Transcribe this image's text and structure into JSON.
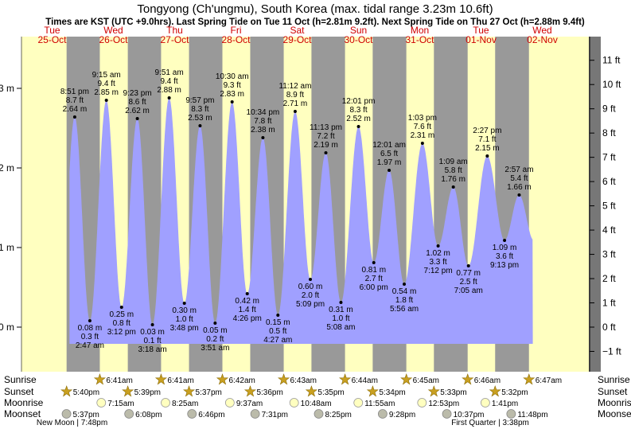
{
  "header": {
    "title": "Tongyong (Ch'ungmu), South Korea (max. tidal range 3.23m 10.6ft)",
    "subtitle": "Times are KST (UTC +9.0hrs). Last Spring Tide on Tue 11 Oct (h=2.81m 9.2ft). Next Spring Tide on Thu 27 Oct (h=2.88m 9.4ft)"
  },
  "days": [
    {
      "name": "Tue",
      "date": "25-Oct"
    },
    {
      "name": "Wed",
      "date": "26-Oct"
    },
    {
      "name": "Thu",
      "date": "27-Oct"
    },
    {
      "name": "Fri",
      "date": "28-Oct"
    },
    {
      "name": "Sat",
      "date": "29-Oct"
    },
    {
      "name": "Sun",
      "date": "30-Oct"
    },
    {
      "name": "Mon",
      "date": "31-Oct"
    },
    {
      "name": "Tue",
      "date": "01-Nov"
    },
    {
      "name": "Wed",
      "date": "02-Nov"
    }
  ],
  "chart_data": {
    "type": "area",
    "x_unit": "hours from 25-Oct 00:00 KST",
    "y_unit": "m",
    "ylim_m": [
      -0.56,
      3.82
    ],
    "left_ticks": [
      "0 m",
      "1 m",
      "2 m",
      "3 m"
    ],
    "right_ticks": [
      "−1 ft",
      "0 ft",
      "1 ft",
      "2 ft",
      "3 ft",
      "4 ft",
      "5 ft",
      "6 ft",
      "7 ft",
      "8 ft",
      "9 ft",
      "10 ft",
      "11 ft"
    ],
    "colors": {
      "water": "#a0a0ff",
      "day": "#ffffc0",
      "night": "#999999",
      "night_edge": "#777777"
    },
    "extremes": [
      {
        "t": 20.85,
        "m": 2.64,
        "time": "8:51 pm",
        "ft": "8.7 ft",
        "mv": "2.64 m"
      },
      {
        "t": 26.78,
        "m": 0.08,
        "time": "2:47 am",
        "ft": "0.3 ft",
        "mv": "0.08 m"
      },
      {
        "t": 33.25,
        "m": 2.85,
        "time": "9:15 am",
        "ft": "9.4 ft",
        "mv": "2.85 m"
      },
      {
        "t": 39.2,
        "m": 0.25,
        "time": "3:12 pm",
        "ft": "0.8 ft",
        "mv": "0.25 m"
      },
      {
        "t": 45.38,
        "m": 2.62,
        "time": "9:23 pm",
        "ft": "8.6 ft",
        "mv": "2.62 m"
      },
      {
        "t": 51.3,
        "m": 0.03,
        "time": "3:18 am",
        "ft": "0.1 ft",
        "mv": "0.03 m"
      },
      {
        "t": 57.85,
        "m": 2.88,
        "time": "9:51 am",
        "ft": "9.4 ft",
        "mv": "2.88 m"
      },
      {
        "t": 63.8,
        "m": 0.3,
        "time": "3:48 pm",
        "ft": "1.0 ft",
        "mv": "0.30 m"
      },
      {
        "t": 69.95,
        "m": 2.53,
        "time": "9:57 pm",
        "ft": "8.3 ft",
        "mv": "2.53 m"
      },
      {
        "t": 75.85,
        "m": 0.05,
        "time": "3:51 am",
        "ft": "0.2 ft",
        "mv": "0.05 m"
      },
      {
        "t": 82.5,
        "m": 2.83,
        "time": "10:30 am",
        "ft": "9.3 ft",
        "mv": "2.83 m"
      },
      {
        "t": 88.43,
        "m": 0.42,
        "time": "4:26 pm",
        "ft": "1.4 ft",
        "mv": "0.42 m"
      },
      {
        "t": 94.57,
        "m": 2.38,
        "time": "10:34 pm",
        "ft": "7.8 ft",
        "mv": "2.38 m"
      },
      {
        "t": 100.45,
        "m": 0.15,
        "time": "4:27 am",
        "ft": "0.5 ft",
        "mv": "0.15 m"
      },
      {
        "t": 107.2,
        "m": 2.71,
        "time": "11:12 am",
        "ft": "8.9 ft",
        "mv": "2.71 m"
      },
      {
        "t": 113.15,
        "m": 0.6,
        "time": "5:09 pm",
        "ft": "2.0 ft",
        "mv": "0.60 m"
      },
      {
        "t": 119.22,
        "m": 2.19,
        "time": "11:13 pm",
        "ft": "7.2 ft",
        "mv": "2.19 m"
      },
      {
        "t": 125.13,
        "m": 0.31,
        "time": "5:08 am",
        "ft": "1.0 ft",
        "mv": "0.31 m"
      },
      {
        "t": 132.02,
        "m": 2.52,
        "time": "12:01 pm",
        "ft": "8.3 ft",
        "mv": "2.52 m"
      },
      {
        "t": 138.0,
        "m": 0.81,
        "time": "6:00 pm",
        "ft": "2.7 ft",
        "mv": "0.81 m"
      },
      {
        "t": 144.02,
        "m": 1.97,
        "time": "12:01 am",
        "ft": "6.5 ft",
        "mv": "1.97 m"
      },
      {
        "t": 149.93,
        "m": 0.54,
        "time": "5:56 am",
        "ft": "1.8 ft",
        "mv": "0.54 m"
      },
      {
        "t": 157.05,
        "m": 2.31,
        "time": "1:03 pm",
        "ft": "7.6 ft",
        "mv": "2.31 m"
      },
      {
        "t": 163.2,
        "m": 1.02,
        "time": "7:12 pm",
        "ft": "3.3 ft",
        "mv": "1.02 m"
      },
      {
        "t": 169.15,
        "m": 1.76,
        "time": "1:09 am",
        "ft": "5.8 ft",
        "mv": "1.76 m"
      },
      {
        "t": 175.08,
        "m": 0.77,
        "time": "7:05 am",
        "ft": "2.5 ft",
        "mv": "0.77 m"
      },
      {
        "t": 182.45,
        "m": 2.15,
        "time": "2:27 pm",
        "ft": "7.1 ft",
        "mv": "2.15 m"
      },
      {
        "t": 189.22,
        "m": 1.09,
        "time": "9:13 pm",
        "ft": "3.6 ft",
        "mv": "1.09 m"
      },
      {
        "t": 194.95,
        "m": 1.66,
        "time": "2:57 am",
        "ft": "5.4 ft",
        "mv": "1.66 m"
      }
    ],
    "sunrise": [
      {
        "t": 30.68,
        "label": "6:41am"
      },
      {
        "t": 54.68,
        "label": "6:41am"
      },
      {
        "t": 78.7,
        "label": "6:42am"
      },
      {
        "t": 102.72,
        "label": "6:43am"
      },
      {
        "t": 126.73,
        "label": "6:44am"
      },
      {
        "t": 150.75,
        "label": "6:45am"
      },
      {
        "t": 174.77,
        "label": "6:46am"
      },
      {
        "t": 198.78,
        "label": "6:47am"
      }
    ],
    "sunset": [
      {
        "t": 17.67,
        "label": "5:40pm"
      },
      {
        "t": 41.65,
        "label": "5:39pm"
      },
      {
        "t": 65.62,
        "label": "5:37pm"
      },
      {
        "t": 89.6,
        "label": "5:36pm"
      },
      {
        "t": 113.58,
        "label": "5:35pm"
      },
      {
        "t": 137.57,
        "label": "5:34pm"
      },
      {
        "t": 161.55,
        "label": "5:33pm"
      },
      {
        "t": 185.53,
        "label": "5:32pm"
      }
    ],
    "moonrise": [
      {
        "t": 31.25,
        "label": "7:15am"
      },
      {
        "t": 56.42,
        "label": "8:25am"
      },
      {
        "t": 81.62,
        "label": "9:37am"
      },
      {
        "t": 106.8,
        "label": "10:48am"
      },
      {
        "t": 131.92,
        "label": "11:55am"
      },
      {
        "t": 156.88,
        "label": "12:53pm"
      },
      {
        "t": 181.68,
        "label": "1:41pm"
      }
    ],
    "moonset": [
      {
        "t": 17.62,
        "label": "5:37pm"
      },
      {
        "t": 42.13,
        "label": "6:08pm"
      },
      {
        "t": 66.77,
        "label": "6:46pm"
      },
      {
        "t": 91.52,
        "label": "7:31pm"
      },
      {
        "t": 116.42,
        "label": "8:25pm"
      },
      {
        "t": 141.47,
        "label": "9:28pm"
      },
      {
        "t": 166.62,
        "label": "10:37pm"
      },
      {
        "t": 191.8,
        "label": "11:48pm"
      }
    ],
    "phases": [
      {
        "label": "New Moon | 7:48pm"
      },
      {
        "label": "First Quarter | 3:38pm"
      }
    ]
  },
  "row_labels": {
    "sunrise": "Sunrise",
    "sunset": "Sunset",
    "moonrise": "Moonrise",
    "moonset": "Moonset"
  }
}
